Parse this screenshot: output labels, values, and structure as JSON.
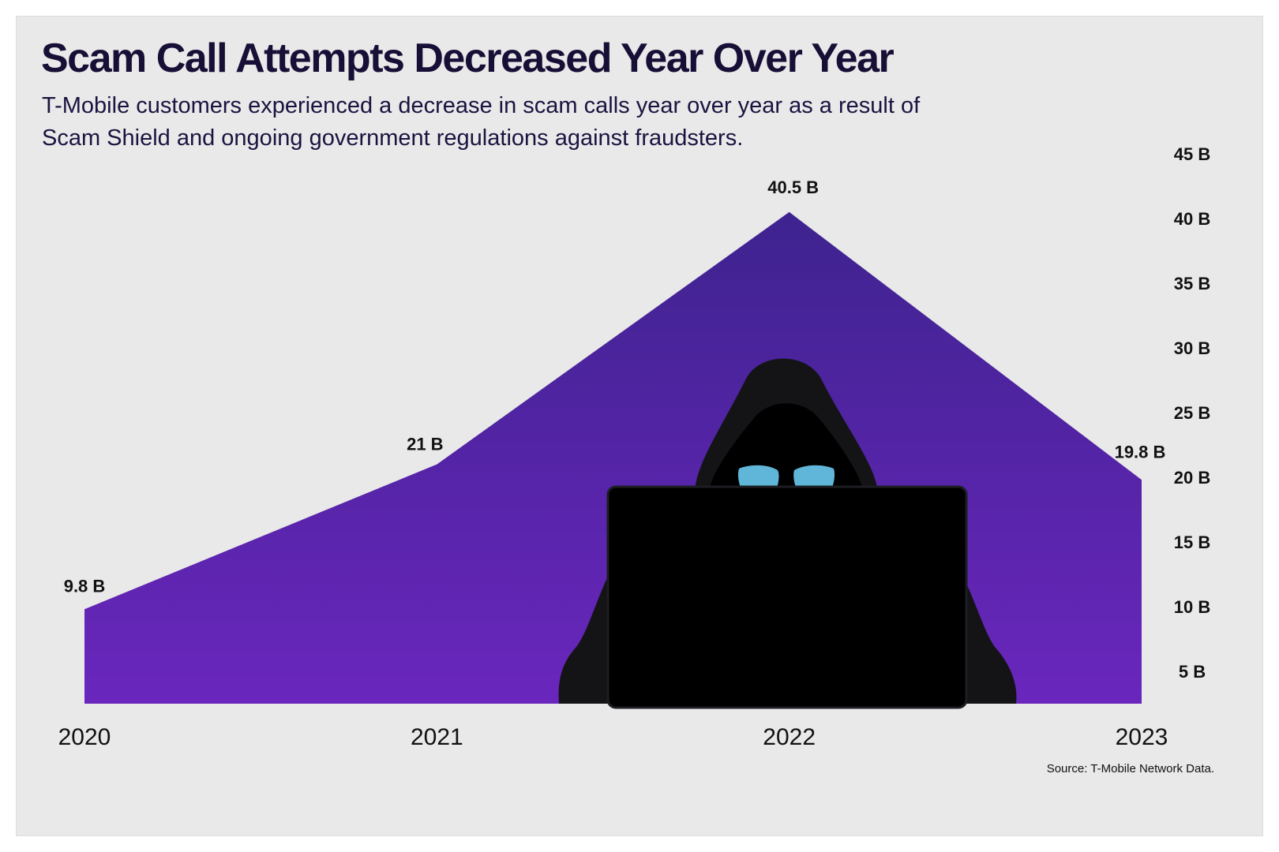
{
  "header": {
    "title": "Scam Call Attempts Decreased Year Over Year",
    "subtitle": "T-Mobile customers experienced a decrease in scam calls year over year as a result of Scam Shield and ongoing government regulations against fraudsters."
  },
  "footer": {
    "source": "Source: T-Mobile Network Data."
  },
  "colors": {
    "area_top": "#3e238f",
    "area_bottom": "#6a26bd",
    "figure": "#141416",
    "laptop": "#000000",
    "eyes": "#5fb6d8",
    "text": "#180f36"
  },
  "illustration": {
    "icon": "hooded-hacker-with-laptop-icon"
  },
  "chart_data": {
    "type": "area",
    "title": "Scam Call Attempts Decreased Year Over Year",
    "xlabel": "",
    "ylabel": "",
    "categories": [
      "2020",
      "2021",
      "2022",
      "2023"
    ],
    "values": [
      9.8,
      21,
      40.5,
      19.8
    ],
    "data_labels": [
      "9.8 B",
      "21 B",
      "40.5 B",
      "19.8 B"
    ],
    "y_axis_position": "right",
    "y_ticks": [
      5,
      10,
      15,
      20,
      25,
      30,
      35,
      40,
      45
    ],
    "y_tick_labels": [
      "5 B",
      "10 B",
      "15 B",
      "20 B",
      "25 B",
      "30 B",
      "35 B",
      "40 B",
      "45 B"
    ],
    "ylim": [
      2.5,
      45
    ],
    "grid": false,
    "legend": "none"
  }
}
